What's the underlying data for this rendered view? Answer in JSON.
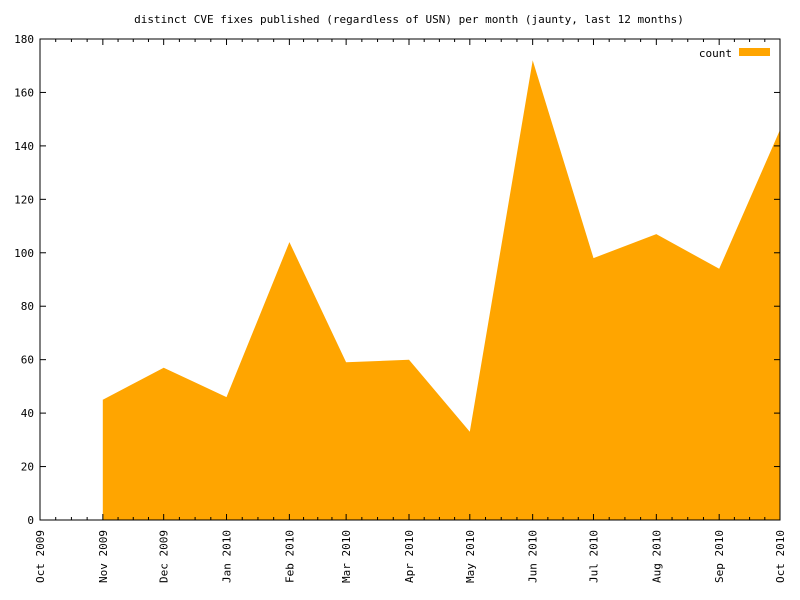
{
  "chart_data": {
    "type": "area",
    "title": "distinct CVE fixes published (regardless of USN) per month (jaunty, last 12 months)",
    "xlabel": "",
    "ylabel": "",
    "x": [
      "2009-11-01",
      "2009-12-01",
      "2010-01-01",
      "2010-02-01",
      "2010-03-01",
      "2010-04-01",
      "2010-05-01",
      "2010-06-01",
      "2010-07-01",
      "2010-08-01",
      "2010-09-01",
      "2010-10-01"
    ],
    "xlim": [
      "2009-10-01",
      "2010-10-01"
    ],
    "x_tick_labels": [
      "Oct 2009",
      "Nov 2009",
      "Dec 2009",
      "Jan 2010",
      "Feb 2010",
      "Mar 2010",
      "Apr 2010",
      "May 2010",
      "Jun 2010",
      "Jul 2010",
      "Aug 2010",
      "Sep 2010",
      "Oct 2010"
    ],
    "ylim": [
      0,
      180
    ],
    "y_ticks": [
      0,
      20,
      40,
      60,
      80,
      100,
      120,
      140,
      160,
      180
    ],
    "series": [
      {
        "name": "count",
        "color": "#ffa500",
        "values": [
          45,
          57,
          46,
          104,
          59,
          60,
          33,
          172,
          98,
          107,
          94,
          146
        ]
      }
    ],
    "legend_placement": "top-right",
    "grid": false
  }
}
